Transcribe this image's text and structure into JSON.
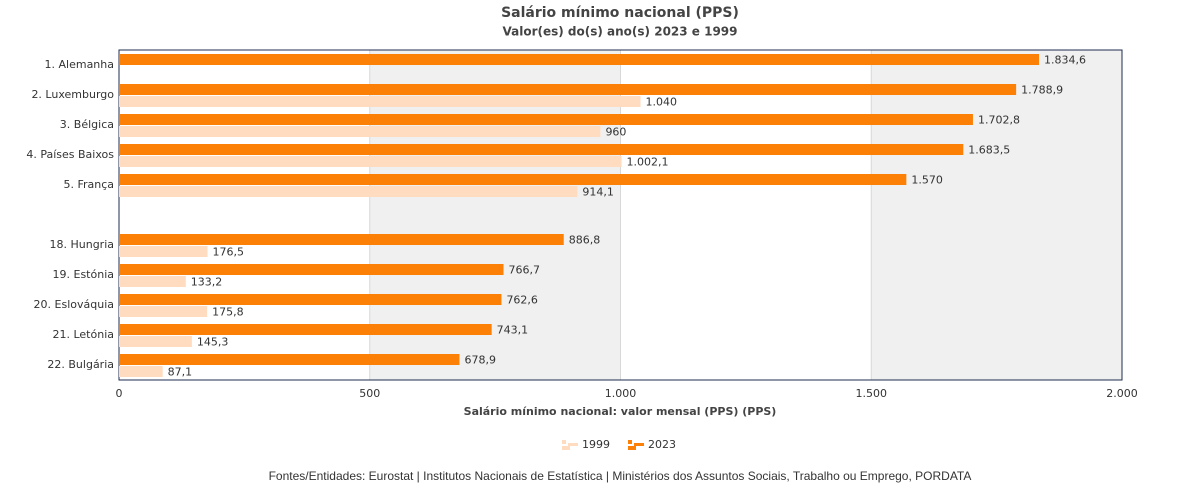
{
  "chart_data": {
    "type": "bar",
    "orientation": "horizontal",
    "title": "Salário mínimo nacional (PPS)",
    "subtitle": "Valor(es) do(s) ano(s) 2023 e 1999",
    "x_label": "Salário mínimo nacional: valor mensal (PPS) (PPS)",
    "categories": [
      "1. Alemanha",
      "2. Luxemburgo",
      "3. Bélgica",
      "4. Países Baixos",
      "5. França",
      null,
      "18. Hungria",
      "19. Estónia",
      "20. Eslováquia",
      "21. Letónia",
      "22. Bulgária"
    ],
    "series": [
      {
        "name": "1999",
        "color": "#ffdcc0",
        "values": [
          null,
          1040,
          960,
          1002.1,
          914.1,
          null,
          176.5,
          133.2,
          175.8,
          145.3,
          87.1
        ],
        "value_labels": [
          null,
          "1.040",
          "960",
          "1.002,1",
          "914,1",
          null,
          "176,5",
          "133,2",
          "175,8",
          "145,3",
          "87,1"
        ]
      },
      {
        "name": "2023",
        "color": "#fb8005",
        "values": [
          1834.6,
          1788.9,
          1702.8,
          1683.5,
          1570,
          null,
          886.8,
          766.7,
          762.6,
          743.1,
          678.9
        ],
        "value_labels": [
          "1.834,6",
          "1.788,9",
          "1.702,8",
          "1.683,5",
          "1.570",
          null,
          "886,8",
          "766,7",
          "762,6",
          "743,1",
          "678,9"
        ]
      }
    ],
    "xlim": [
      0,
      2000
    ],
    "xticks": [
      0,
      500,
      {
        "value": 1000,
        "label": "1.000"
      },
      {
        "value": 1500,
        "label": "1.500"
      },
      {
        "value": 2000,
        "label": "2.000"
      }
    ],
    "source": "Fontes/Entidades: Eurostat | Institutos Nacionais de Estatística | Ministérios dos Assuntos Sociais, Trabalho ou Emprego, PORDATA"
  }
}
